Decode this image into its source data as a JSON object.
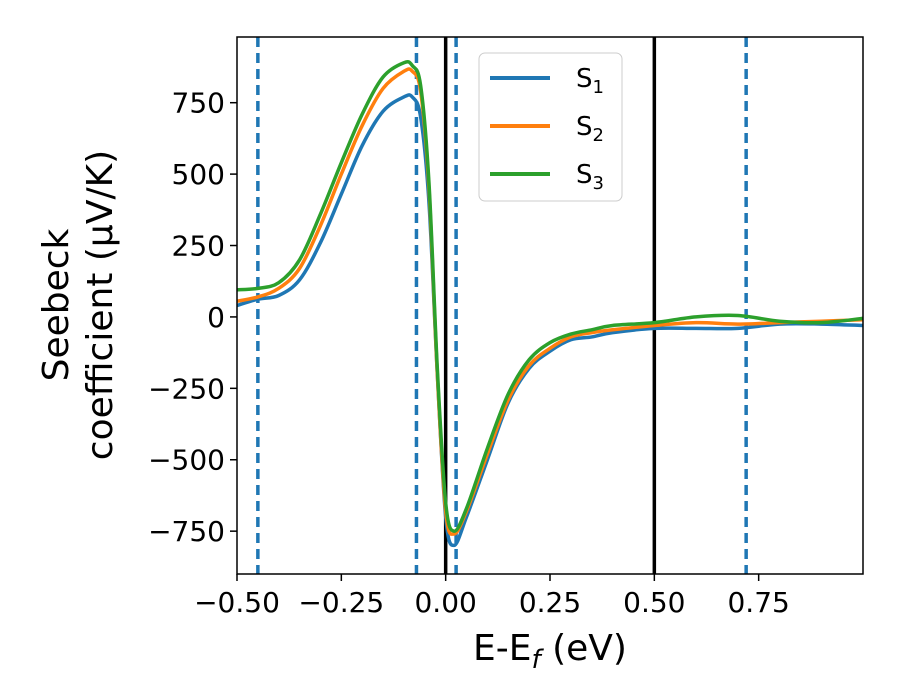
{
  "chart_data": {
    "type": "line",
    "xlabel": "E-E_f (eV)",
    "ylabel_line1": "Seebeck",
    "ylabel_line2": "coefficient  (μV/K)",
    "xlim": [
      -0.5,
      1.0
    ],
    "ylim": [
      -900,
      980
    ],
    "x_ticks": [
      -0.5,
      -0.25,
      0.0,
      0.25,
      0.5,
      0.75
    ],
    "x_tick_labels": [
      "−0.50",
      "−0.25",
      "0.00",
      "0.25",
      "0.50",
      "0.75"
    ],
    "y_ticks": [
      750,
      500,
      250,
      0,
      -250,
      -500,
      -750
    ],
    "y_tick_labels": [
      "750",
      "500",
      "250",
      "0",
      "−250",
      "−500",
      "−750"
    ],
    "grid": false,
    "legend_position": "top-center",
    "colors": {
      "S1": "#1f77b4",
      "S2": "#ff7f0e",
      "S3": "#2ca02c",
      "solid_vline": "#000000",
      "dashed_vline": "#1f77b4"
    },
    "vlines_solid": [
      0.0,
      0.5
    ],
    "vlines_dashed": [
      -0.45,
      -0.07,
      0.025,
      0.72
    ],
    "series": [
      {
        "name": "S1",
        "legend_base": "S",
        "legend_sub": "1",
        "x": [
          -0.5,
          -0.45,
          -0.4,
          -0.35,
          -0.3,
          -0.25,
          -0.2,
          -0.15,
          -0.1,
          -0.08,
          -0.06,
          -0.04,
          -0.02,
          0.0,
          0.02,
          0.05,
          0.1,
          0.15,
          0.2,
          0.25,
          0.3,
          0.35,
          0.4,
          0.5,
          0.6,
          0.7,
          0.8,
          0.9,
          1.0
        ],
        "y": [
          40,
          62,
          75,
          130,
          260,
          430,
          600,
          720,
          770,
          770,
          700,
          400,
          -200,
          -700,
          -800,
          -700,
          -500,
          -300,
          -180,
          -120,
          -80,
          -70,
          -55,
          -40,
          -40,
          -40,
          -25,
          -25,
          -30
        ]
      },
      {
        "name": "S2",
        "legend_base": "S",
        "legend_sub": "2",
        "x": [
          -0.5,
          -0.45,
          -0.4,
          -0.35,
          -0.3,
          -0.25,
          -0.2,
          -0.15,
          -0.1,
          -0.08,
          -0.06,
          -0.04,
          -0.02,
          0.0,
          0.02,
          0.05,
          0.1,
          0.15,
          0.2,
          0.25,
          0.3,
          0.35,
          0.4,
          0.5,
          0.6,
          0.7,
          0.8,
          0.9,
          1.0
        ],
        "y": [
          55,
          70,
          100,
          170,
          320,
          500,
          670,
          800,
          860,
          860,
          790,
          450,
          -200,
          -680,
          -760,
          -680,
          -480,
          -290,
          -170,
          -110,
          -70,
          -55,
          -45,
          -30,
          -20,
          -25,
          -20,
          -15,
          -10
        ]
      },
      {
        "name": "S3",
        "legend_base": "S",
        "legend_sub": "3",
        "x": [
          -0.5,
          -0.45,
          -0.4,
          -0.35,
          -0.3,
          -0.25,
          -0.2,
          -0.15,
          -0.1,
          -0.08,
          -0.06,
          -0.04,
          -0.02,
          0.0,
          0.02,
          0.05,
          0.1,
          0.15,
          0.2,
          0.25,
          0.3,
          0.35,
          0.4,
          0.5,
          0.6,
          0.7,
          0.8,
          0.9,
          1.0
        ],
        "y": [
          95,
          100,
          120,
          200,
          360,
          540,
          710,
          840,
          890,
          880,
          810,
          470,
          -180,
          -650,
          -750,
          -670,
          -460,
          -270,
          -150,
          -90,
          -60,
          -45,
          -30,
          -20,
          0,
          5,
          -15,
          -20,
          -5
        ]
      }
    ]
  }
}
